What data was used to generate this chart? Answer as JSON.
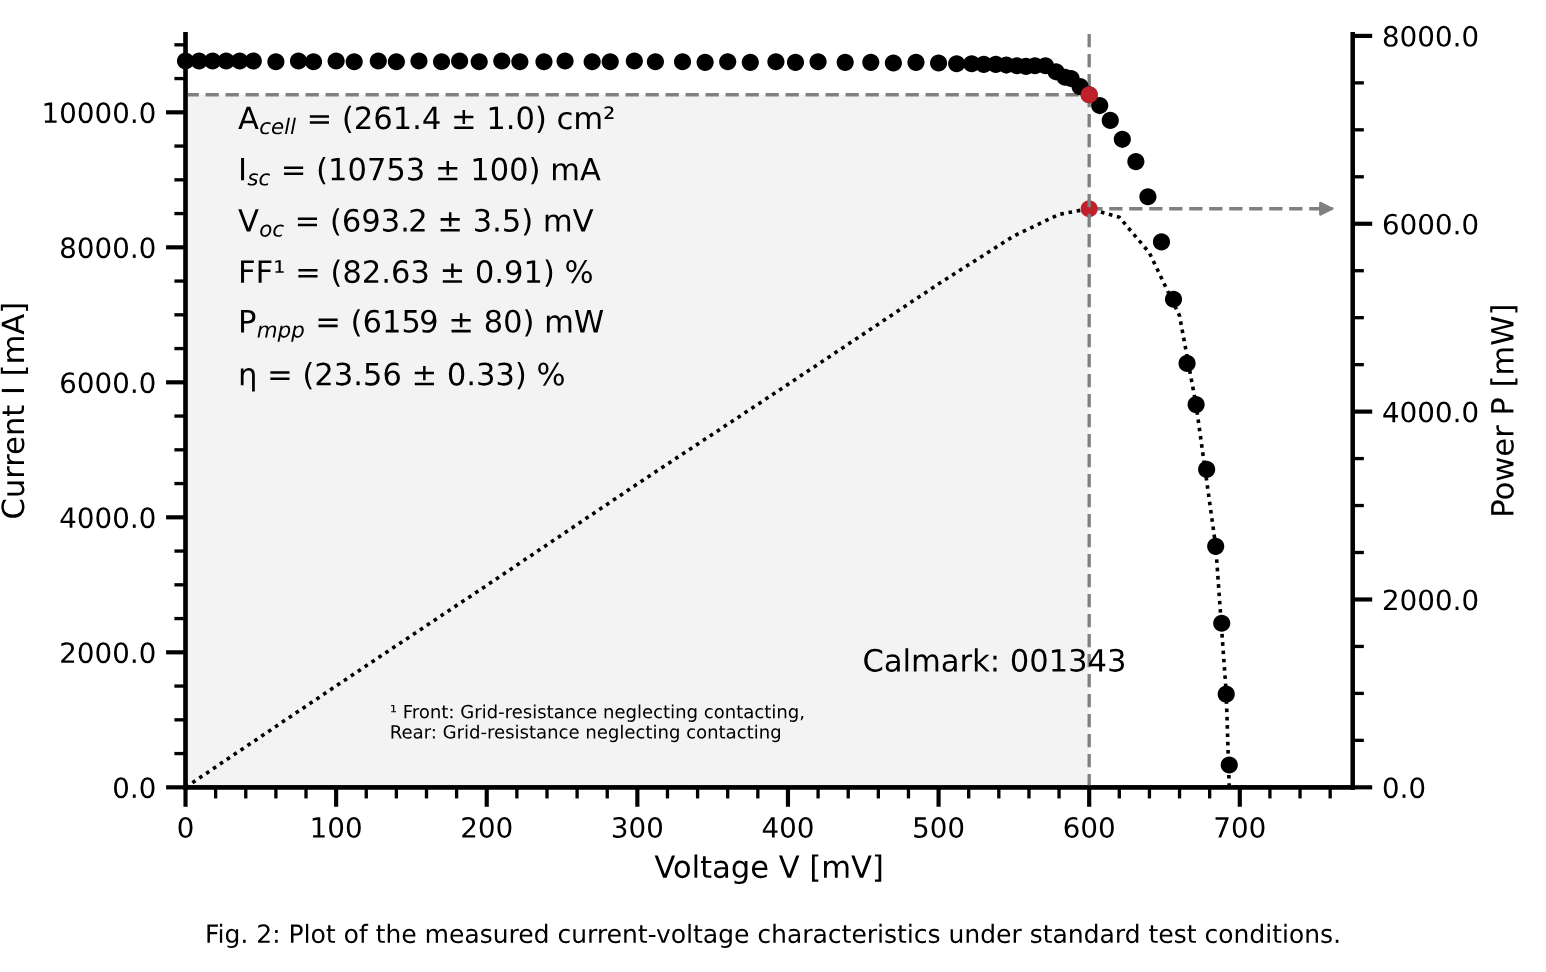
{
  "chart_data": {
    "type": "scatter",
    "xlabel": "Voltage V [mV]",
    "ylabel": "Current I [mA]",
    "y2label": "Power P [mW]",
    "xlim": [
      0,
      775
    ],
    "xticks": [
      0,
      100,
      200,
      300,
      400,
      500,
      600,
      700
    ],
    "ylim": [
      0,
      11160
    ],
    "yticks": [
      {
        "value": 0,
        "label": "0.0"
      },
      {
        "value": 2000,
        "label": "2000.0"
      },
      {
        "value": 4000,
        "label": "4000.0"
      },
      {
        "value": 6000,
        "label": "6000.0"
      },
      {
        "value": 8000,
        "label": "8000.0"
      },
      {
        "value": 10000,
        "label": "10000.0"
      }
    ],
    "y2lim": [
      0,
      8020
    ],
    "y2ticks": [
      {
        "value": 0,
        "label": "0.0"
      },
      {
        "value": 2000,
        "label": "2000.0"
      },
      {
        "value": 4000,
        "label": "4000.0"
      },
      {
        "value": 6000,
        "label": "6000.0"
      },
      {
        "value": 8000,
        "label": "8000.0"
      }
    ],
    "grid": false,
    "series": [
      {
        "color": "#000000",
        "marker": "circle",
        "x": [
          0,
          9,
          18,
          27,
          36,
          45,
          60,
          75,
          85,
          100,
          112,
          128,
          140,
          155,
          170,
          182,
          195,
          210,
          222,
          238,
          252,
          270,
          282,
          298,
          312,
          330,
          345,
          360,
          375,
          392,
          405,
          420,
          438,
          455,
          470,
          485,
          500,
          512,
          522,
          530,
          538,
          545,
          552,
          558,
          564,
          571,
          578,
          584,
          588,
          594,
          600,
          607,
          614,
          622,
          631,
          639,
          648,
          656,
          665,
          671,
          678,
          684,
          688,
          691,
          693
        ],
        "values": [
          10760,
          10760,
          10760,
          10760,
          10760,
          10760,
          10750,
          10760,
          10750,
          10760,
          10750,
          10760,
          10750,
          10760,
          10750,
          10760,
          10750,
          10760,
          10750,
          10750,
          10760,
          10750,
          10750,
          10760,
          10750,
          10750,
          10740,
          10750,
          10740,
          10750,
          10740,
          10750,
          10740,
          10740,
          10730,
          10740,
          10730,
          10720,
          10720,
          10710,
          10710,
          10700,
          10690,
          10680,
          10690,
          10690,
          10600,
          10520,
          10500,
          10380,
          10260,
          10100,
          9880,
          9600,
          9270,
          8750,
          8080,
          7230,
          6280,
          5670,
          4710,
          3570,
          2430,
          1380,
          330
        ]
      },
      {
        "type": "line",
        "axis": "y2",
        "color": "#000000",
        "line_style": "dotted",
        "marker": "none",
        "x": [
          0,
          100,
          200,
          300,
          400,
          500,
          550,
          580,
          600,
          620,
          640,
          660,
          671,
          684,
          691,
          693
        ],
        "values": [
          0,
          1080,
          2150,
          3230,
          4290,
          5360,
          5870,
          6100,
          6160,
          6070,
          5690,
          5020,
          4070,
          2570,
          1000,
          0
        ]
      },
      {
        "color": "#c0202a",
        "marker": "circle",
        "x": [
          600
        ],
        "values": [
          10260
        ]
      },
      {
        "axis": "y2",
        "color": "#c0202a",
        "marker": "circle",
        "x": [
          600
        ],
        "values": [
          6160
        ]
      }
    ],
    "ref_lines": [
      {
        "axis": "y",
        "value": 10260,
        "color": "#808080",
        "line_style": "dashed"
      },
      {
        "axis": "x",
        "value": 600,
        "color": "#808080",
        "line_style": "dashed"
      },
      {
        "axis": "y2",
        "value": 6160,
        "color": "#808080",
        "line_style": "dashed"
      }
    ],
    "bands": [
      {
        "axis": "x",
        "from": 0,
        "to": 600,
        "color": "#f3f3f3"
      }
    ],
    "annotations": [
      "A$_{cell}$ = (261.4 ± 1.0) cm²",
      "I$_{sc}$ = (10753 ± 100) mA",
      "V$_{oc}$ = (693.2 ± 3.5) mV",
      "FF¹ = (82.63 ± 0.91) %",
      "P$_{mpp}$ = (6159 ± 80) mW",
      "η = (23.56 ± 0.33) %",
      "Calmark: 001343",
      "¹ Front: Grid-resistance neglecting contacting,\nRear: Grid-resistance neglecting contacting",
      "Fig. 2: Plot of the measured current-voltage characteristics under standard test conditions."
    ]
  }
}
